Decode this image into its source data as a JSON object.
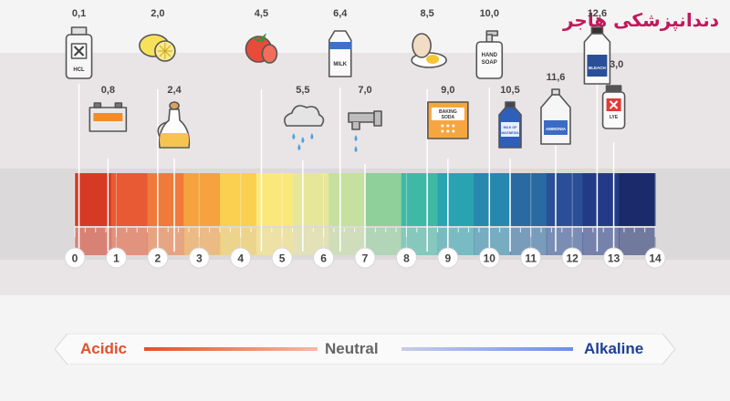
{
  "watermark": "دندانپزشکی هاجر",
  "scale": {
    "ticks": [
      "0",
      "1",
      "2",
      "3",
      "4",
      "5",
      "6",
      "7",
      "8",
      "9",
      "10",
      "11",
      "12",
      "13",
      "14"
    ],
    "colors": [
      "#d63a25",
      "#e75a33",
      "#ef7a3a",
      "#f5a23f",
      "#fbcf4f",
      "#fbe87a",
      "#e7e79a",
      "#c6e0a0",
      "#8fcf9a",
      "#3fb9a5",
      "#2aa3b0",
      "#2787ad",
      "#2a6aa3",
      "#2a4f98",
      "#233a86",
      "#1a2a6a"
    ]
  },
  "items": [
    {
      "ph": "0,1",
      "value": 0.1,
      "icon": "hcl-bottle-icon",
      "label": "HCL"
    },
    {
      "ph": "0,8",
      "value": 0.8,
      "icon": "car-battery-icon",
      "label": ""
    },
    {
      "ph": "2,0",
      "value": 2.0,
      "icon": "lemon-icon",
      "label": ""
    },
    {
      "ph": "2,4",
      "value": 2.4,
      "icon": "vinegar-jug-icon",
      "label": ""
    },
    {
      "ph": "4,5",
      "value": 4.5,
      "icon": "tomato-icon",
      "label": ""
    },
    {
      "ph": "5,5",
      "value": 5.5,
      "icon": "rain-cloud-icon",
      "label": ""
    },
    {
      "ph": "6,4",
      "value": 6.4,
      "icon": "milk-carton-icon",
      "label": "MILK"
    },
    {
      "ph": "7,0",
      "value": 7.0,
      "icon": "water-tap-icon",
      "label": ""
    },
    {
      "ph": "8,5",
      "value": 8.5,
      "icon": "egg-icon",
      "label": ""
    },
    {
      "ph": "9,0",
      "value": 9.0,
      "icon": "baking-soda-icon",
      "label": "BAKING SODA"
    },
    {
      "ph": "10,0",
      "value": 10.0,
      "icon": "hand-soap-icon",
      "label": "HAND SOAP"
    },
    {
      "ph": "10,5",
      "value": 10.5,
      "icon": "magnesia-bottle-icon",
      "label": "MILK OF MAGNESIA"
    },
    {
      "ph": "11,6",
      "value": 11.6,
      "icon": "ammonia-bottle-icon",
      "label": "AMMONIA"
    },
    {
      "ph": "12,6",
      "value": 12.6,
      "icon": "bleach-bottle-icon",
      "label": "BLEACH"
    },
    {
      "ph": "13,0",
      "value": 13.0,
      "icon": "lye-jar-icon",
      "label": "LYE"
    }
  ],
  "legend": {
    "acidic": "Acidic",
    "neutral": "Neutral",
    "alkaline": "Alkaline"
  }
}
